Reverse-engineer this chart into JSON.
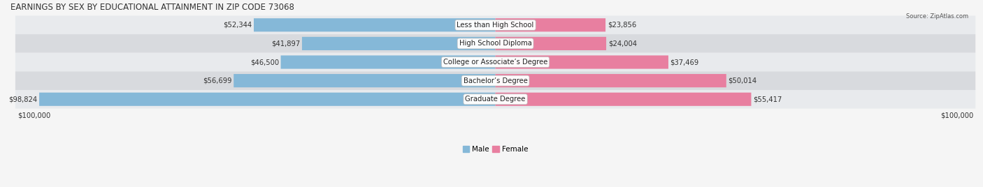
{
  "title": "EARNINGS BY SEX BY EDUCATIONAL ATTAINMENT IN ZIP CODE 73068",
  "source": "Source: ZipAtlas.com",
  "categories": [
    "Less than High School",
    "High School Diploma",
    "College or Associate’s Degree",
    "Bachelor’s Degree",
    "Graduate Degree"
  ],
  "male_values": [
    52344,
    41897,
    46500,
    56699,
    98824
  ],
  "female_values": [
    23856,
    24004,
    37469,
    50014,
    55417
  ],
  "male_color": "#85b8d8",
  "female_color": "#e87fa0",
  "row_bg_light": "#e8eaed",
  "row_bg_dark": "#d8dade",
  "max_value": 100000,
  "background_color": "#f5f5f5",
  "title_fontsize": 8.5,
  "label_fontsize": 7.2,
  "value_fontsize": 7.2,
  "bar_height": 0.72,
  "figsize": [
    14.06,
    2.68
  ],
  "dpi": 100
}
